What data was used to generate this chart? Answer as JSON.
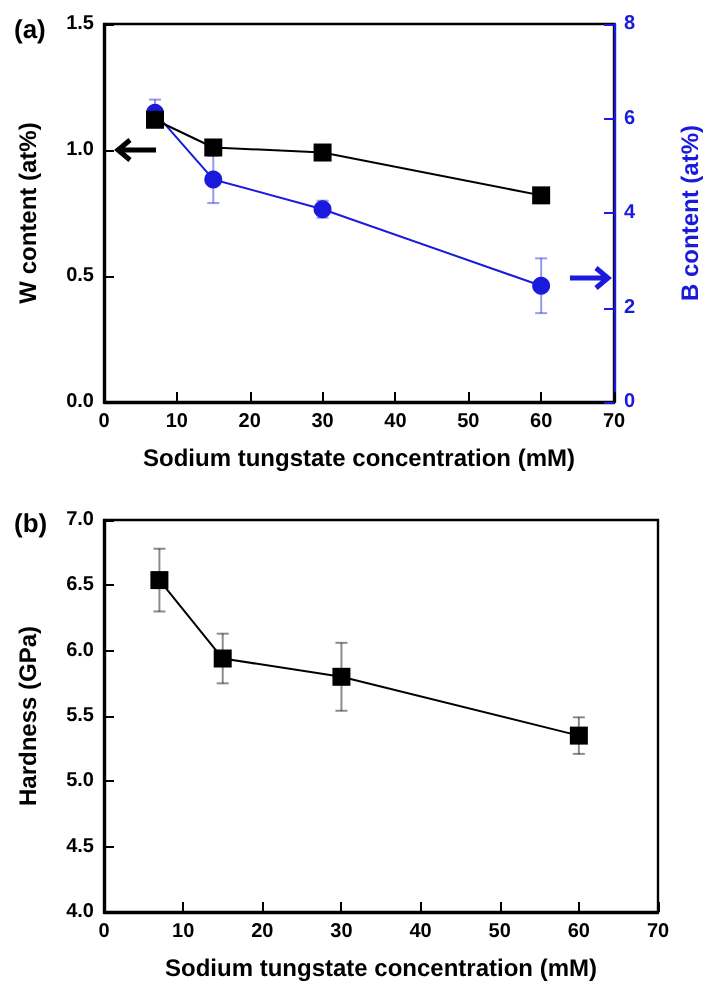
{
  "chart_data": [
    {
      "type": "line",
      "title": "(a)",
      "xlabel": "Sodium tungstate concentration (mM)",
      "ylabel": "W content (at%)",
      "y2label": "B content (at%)",
      "x": [
        7,
        15,
        30,
        60
      ],
      "xlim": [
        0,
        70
      ],
      "xticks": [
        0,
        10,
        20,
        30,
        40,
        50,
        60,
        70
      ],
      "ylim": [
        0,
        1.5
      ],
      "yticks": [
        {
          "value": 0,
          "label": "0.0"
        },
        {
          "value": 0.5,
          "label": "0.5"
        },
        {
          "value": 1,
          "label": "1.0"
        },
        {
          "value": 1.5,
          "label": "1.5"
        }
      ],
      "y2lim": [
        0,
        8
      ],
      "y2ticks": [
        0,
        2,
        4,
        6,
        8
      ],
      "line_style": "solid",
      "series": [
        {
          "color": "#000000",
          "marker": "square",
          "values": [
            1.12,
            1.01,
            0.99,
            0.82
          ]
        },
        {
          "color": "#1a1adc",
          "marker": "circle",
          "axis": "y2",
          "values": [
            6.12,
            4.71,
            4.08,
            2.46
          ],
          "errors": [
            0.28,
            0.5,
            0.18,
            0.58
          ]
        }
      ]
    },
    {
      "type": "line",
      "title": "(b)",
      "xlabel": "Sodium tungstate concentration (mM)",
      "ylabel": "Hardness (GPa)",
      "x": [
        7,
        15,
        30,
        60
      ],
      "xlim": [
        0,
        70
      ],
      "xticks": [
        0,
        10,
        20,
        30,
        40,
        50,
        60,
        70
      ],
      "ylim": [
        4,
        7
      ],
      "yticks": [
        {
          "value": 4,
          "label": "4.0"
        },
        {
          "value": 4.5,
          "label": "4.5"
        },
        {
          "value": 5,
          "label": "5.0"
        },
        {
          "value": 5.5,
          "label": "5.5"
        },
        {
          "value": 6,
          "label": "6.0"
        },
        {
          "value": 6.5,
          "label": "6.5"
        },
        {
          "value": 7,
          "label": "7.0"
        }
      ],
      "line_style": "solid",
      "series": [
        {
          "color": "#000000",
          "marker": "square",
          "values": [
            6.54,
            5.94,
            5.8,
            5.35
          ],
          "errors": [
            0.24,
            0.19,
            0.26,
            0.14
          ]
        }
      ]
    }
  ]
}
